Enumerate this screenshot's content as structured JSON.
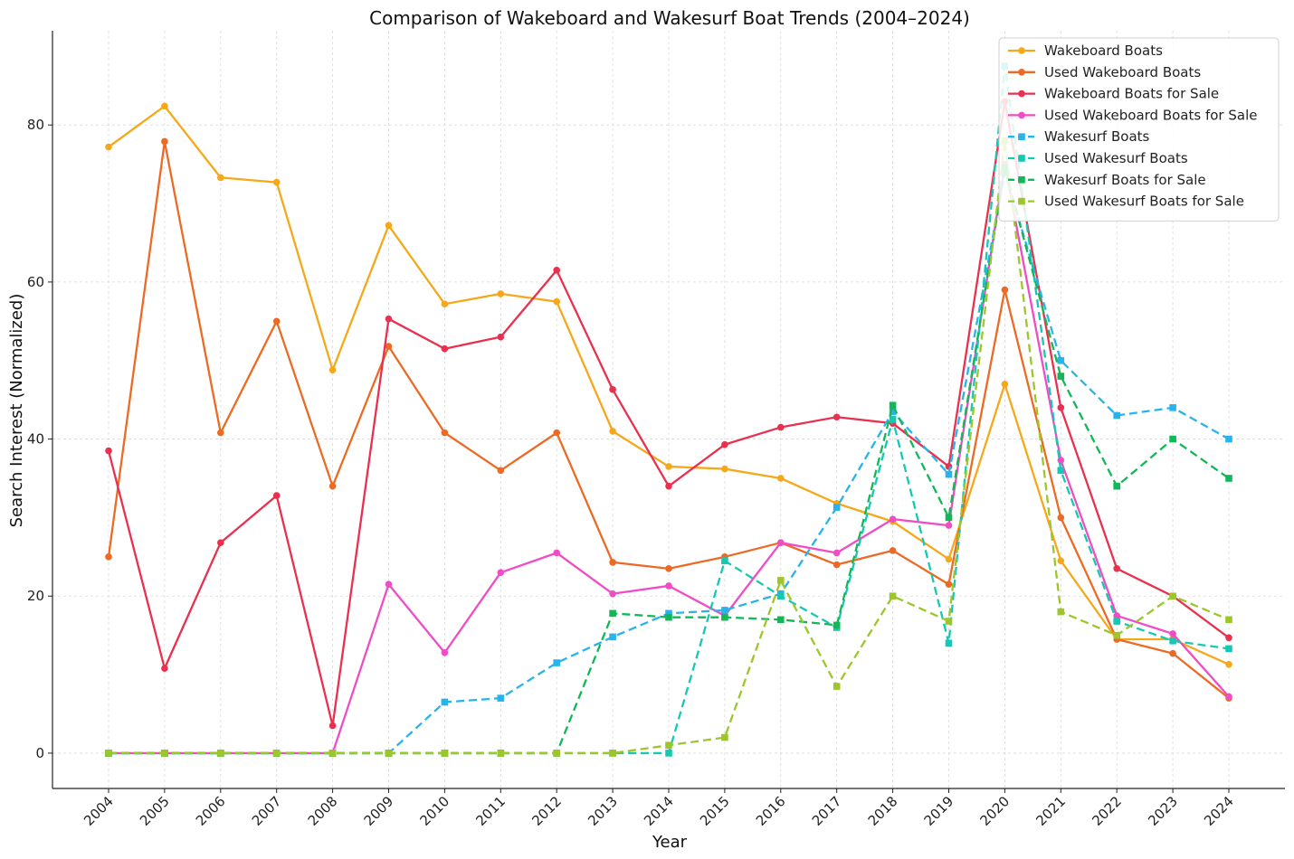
{
  "chart_data": {
    "type": "line",
    "title": "Comparison of Wakeboard and Wakesurf Boat Trends (2004–2024)",
    "xlabel": "Year",
    "ylabel": "Search Interest (Normalized)",
    "ylim": [
      -4.5,
      92
    ],
    "yticks": [
      0,
      20,
      40,
      60,
      80
    ],
    "grid": true,
    "legend_position": "top-right",
    "categories": [
      "2004",
      "2005",
      "2006",
      "2007",
      "2008",
      "2009",
      "2010",
      "2011",
      "2012",
      "2013",
      "2014",
      "2015",
      "2016",
      "2017",
      "2018",
      "2019",
      "2020",
      "2021",
      "2022",
      "2023",
      "2024"
    ],
    "series": [
      {
        "name": "Wakeboard Boats",
        "color": "#f5a819",
        "style": "solid",
        "marker": "circle",
        "values": [
          77.2,
          82.4,
          73.3,
          72.7,
          48.8,
          67.2,
          57.2,
          58.5,
          57.5,
          41.0,
          36.5,
          36.2,
          35.0,
          31.8,
          29.5,
          24.7,
          47.0,
          24.5,
          14.5,
          14.5,
          11.3
        ]
      },
      {
        "name": "Used Wakeboard Boats",
        "color": "#ec6a24",
        "style": "solid",
        "marker": "circle",
        "values": [
          25.0,
          77.9,
          40.8,
          55.0,
          34.0,
          51.8,
          40.8,
          36.0,
          40.8,
          24.3,
          23.5,
          25.0,
          26.8,
          24.0,
          25.8,
          21.5,
          59.0,
          30.0,
          14.5,
          12.7,
          7.0
        ]
      },
      {
        "name": "Wakeboard Boats for Sale",
        "color": "#e9304e",
        "style": "solid",
        "marker": "circle",
        "values": [
          38.5,
          10.8,
          26.8,
          32.8,
          3.5,
          55.3,
          51.5,
          53.0,
          61.5,
          46.3,
          34.0,
          39.3,
          41.5,
          42.8,
          42.0,
          36.5,
          83.0,
          44.0,
          23.5,
          20.0,
          14.7
        ]
      },
      {
        "name": "Used Wakeboard Boats for Sale",
        "color": "#ef4cc6",
        "style": "solid",
        "marker": "circle",
        "values": [
          0,
          0,
          0,
          0,
          0,
          21.5,
          12.8,
          23.0,
          25.5,
          20.3,
          21.3,
          17.5,
          26.8,
          25.5,
          29.8,
          29.0,
          75.0,
          37.3,
          17.5,
          15.2,
          7.2
        ]
      },
      {
        "name": "Wakesurf Boats",
        "color": "#28b4ea",
        "style": "dashed",
        "marker": "square",
        "values": [
          0,
          0,
          0,
          0,
          0,
          0,
          6.5,
          7.0,
          11.5,
          14.8,
          17.8,
          18.2,
          20.3,
          31.3,
          43.5,
          35.5,
          74.0,
          50.0,
          43.0,
          44.0,
          40.0
        ]
      },
      {
        "name": "Used Wakesurf Boats",
        "color": "#16c8b4",
        "style": "dashed",
        "marker": "square",
        "values": [
          0,
          0,
          0,
          0,
          0,
          0,
          0,
          0,
          0,
          0,
          0,
          24.5,
          20.0,
          16.0,
          42.5,
          14.0,
          87.5,
          36.0,
          16.8,
          14.3,
          13.3
        ]
      },
      {
        "name": "Wakesurf Boats for Sale",
        "color": "#12b857",
        "style": "dashed",
        "marker": "square",
        "values": [
          0,
          0,
          0,
          0,
          0,
          0,
          0,
          0,
          0,
          17.8,
          17.3,
          17.3,
          17.0,
          16.3,
          44.3,
          30.0,
          74.5,
          48.0,
          34.0,
          40.0,
          35.0
        ]
      },
      {
        "name": "Used Wakesurf Boats for Sale",
        "color": "#9cc62a",
        "style": "dashed",
        "marker": "square",
        "values": [
          0,
          0,
          0,
          0,
          0,
          0,
          0,
          0,
          0,
          0,
          1.0,
          2.0,
          22.0,
          8.5,
          20.0,
          16.8,
          78.0,
          18.0,
          15.0,
          20.0,
          17.0
        ]
      }
    ]
  }
}
